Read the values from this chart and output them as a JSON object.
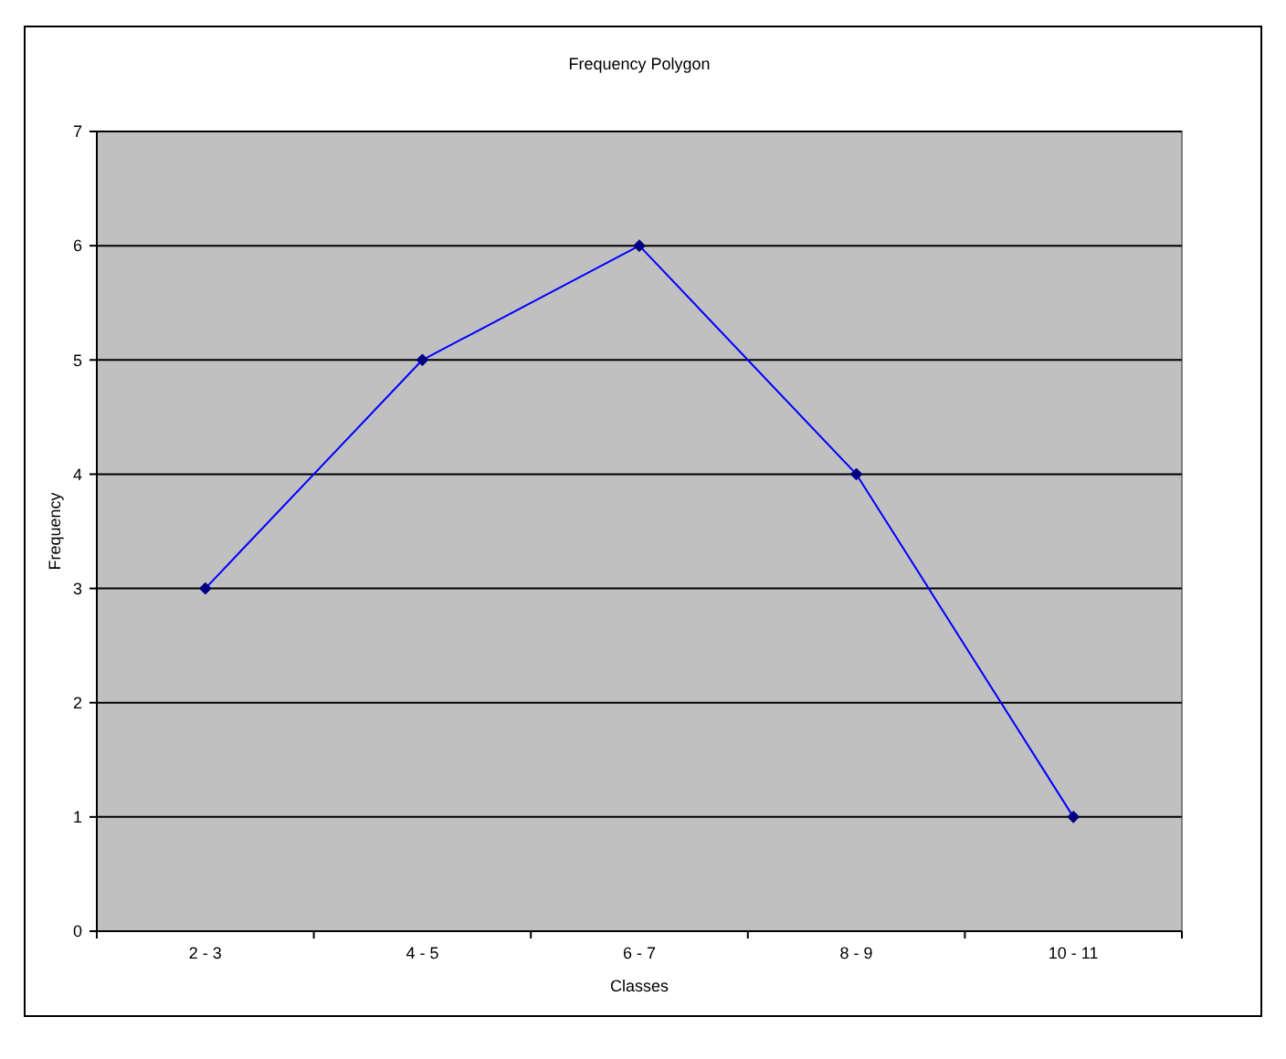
{
  "chart_data": {
    "type": "line",
    "title": "Frequency Polygon",
    "xlabel": "Classes",
    "ylabel": "Frequency",
    "categories": [
      "2 - 3",
      "4 - 5",
      "6 - 7",
      "8 - 9",
      "10 - 11"
    ],
    "series": [
      {
        "color": "#0000ff",
        "values": [
          3,
          5,
          6,
          4,
          1
        ]
      }
    ],
    "ylim": [
      0,
      7
    ],
    "yticks": [
      0,
      1,
      2,
      3,
      4,
      5,
      6,
      7
    ],
    "grid": "y",
    "marker": "diamond",
    "line_style": "solid"
  }
}
